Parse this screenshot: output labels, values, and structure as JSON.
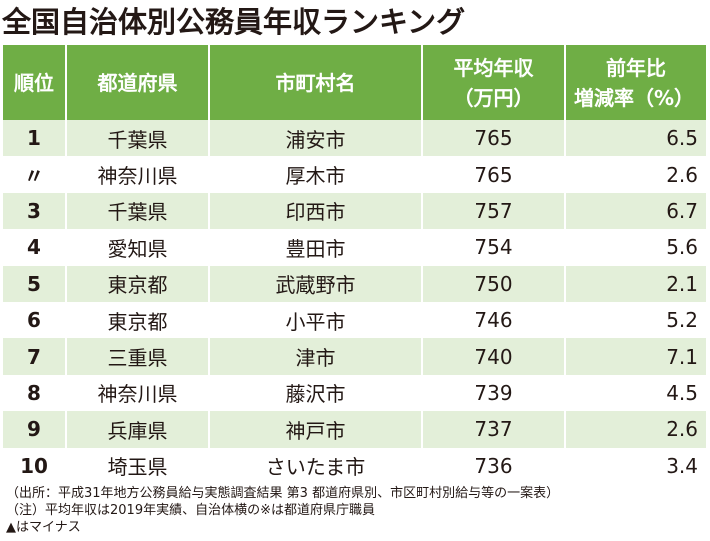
{
  "title": "全国自治体別公務員年収ランキング",
  "table": {
    "headers": {
      "rank": "順位",
      "prefecture": "都道府県",
      "city": "市町村名",
      "avg_income": [
        "平均年収",
        "（万円）"
      ],
      "yoy_change": [
        "前年比",
        "増減率（%）"
      ]
    },
    "rows": [
      {
        "rank": "1",
        "prefecture": "千葉県",
        "city": "浦安市",
        "avg_income": "765",
        "yoy_change": "6.5"
      },
      {
        "rank": "〃",
        "prefecture": "神奈川県",
        "city": "厚木市",
        "avg_income": "765",
        "yoy_change": "2.6"
      },
      {
        "rank": "3",
        "prefecture": "千葉県",
        "city": "印西市",
        "avg_income": "757",
        "yoy_change": "6.7"
      },
      {
        "rank": "4",
        "prefecture": "愛知県",
        "city": "豊田市",
        "avg_income": "754",
        "yoy_change": "5.6"
      },
      {
        "rank": "5",
        "prefecture": "東京都",
        "city": "武蔵野市",
        "avg_income": "750",
        "yoy_change": "2.1"
      },
      {
        "rank": "6",
        "prefecture": "東京都",
        "city": "小平市",
        "avg_income": "746",
        "yoy_change": "5.2"
      },
      {
        "rank": "7",
        "prefecture": "三重県",
        "city": "津市",
        "avg_income": "740",
        "yoy_change": "7.1"
      },
      {
        "rank": "8",
        "prefecture": "神奈川県",
        "city": "藤沢市",
        "avg_income": "739",
        "yoy_change": "4.5"
      },
      {
        "rank": "9",
        "prefecture": "兵庫県",
        "city": "神戸市",
        "avg_income": "737",
        "yoy_change": "2.6"
      },
      {
        "rank": "10",
        "prefecture": "埼玉県",
        "city": "さいたま市",
        "avg_income": "736",
        "yoy_change": "3.4"
      }
    ]
  },
  "notes": [
    "（出所：平成31年地方公務員給与実態調査結果 第3 都道府県別、市区町村別給与等の一案表）",
    "（注）平均年収は2019年実績、自治体横の※は都道府県庁職員",
    "▲はマイナス"
  ],
  "colors": {
    "header_bg": "#6fae45",
    "stripe_bg": "#e3efd9",
    "text": "#231815"
  }
}
